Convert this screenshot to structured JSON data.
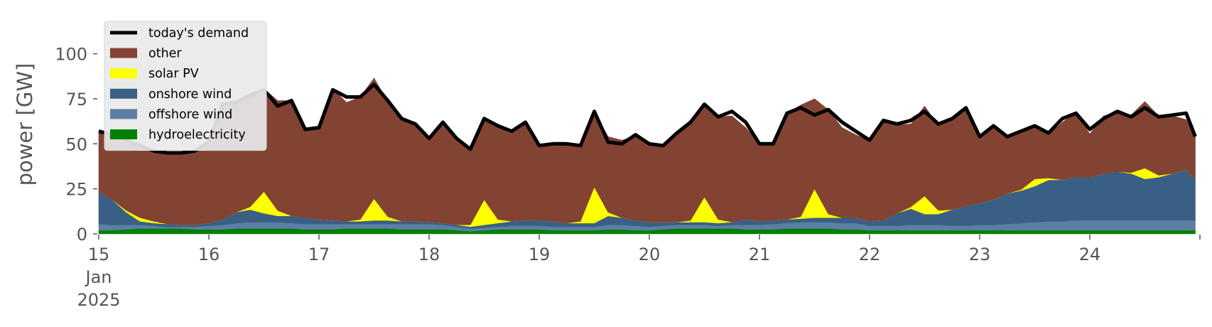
{
  "chart_data": {
    "type": "area",
    "ylabel": "power [GW]",
    "ylim": [
      0,
      118
    ],
    "yticks": [
      0,
      25,
      50,
      75,
      100
    ],
    "xlim": [
      "2025-01-15",
      "2025-01-25"
    ],
    "xtick_labels": [
      "15",
      "16",
      "17",
      "18",
      "19",
      "20",
      "21",
      "22",
      "23",
      "24"
    ],
    "xtick_month": "Jan",
    "xtick_year": "2025",
    "grid": false,
    "legend_position": "top-left",
    "x": [
      "2025-01-15 00:00",
      "2025-01-15 03:00",
      "2025-01-15 06:00",
      "2025-01-15 09:00",
      "2025-01-15 12:00",
      "2025-01-15 15:00",
      "2025-01-15 18:00",
      "2025-01-15 21:00",
      "2025-01-16 00:00",
      "2025-01-16 03:00",
      "2025-01-16 06:00",
      "2025-01-16 09:00",
      "2025-01-16 12:00",
      "2025-01-16 15:00",
      "2025-01-16 18:00",
      "2025-01-16 21:00",
      "2025-01-17 00:00",
      "2025-01-17 03:00",
      "2025-01-17 06:00",
      "2025-01-17 09:00",
      "2025-01-17 12:00",
      "2025-01-17 15:00",
      "2025-01-17 18:00",
      "2025-01-17 21:00",
      "2025-01-18 00:00",
      "2025-01-18 03:00",
      "2025-01-18 06:00",
      "2025-01-18 09:00",
      "2025-01-18 12:00",
      "2025-01-18 15:00",
      "2025-01-18 18:00",
      "2025-01-18 21:00",
      "2025-01-19 00:00",
      "2025-01-19 03:00",
      "2025-01-19 06:00",
      "2025-01-19 09:00",
      "2025-01-19 12:00",
      "2025-01-19 15:00",
      "2025-01-19 18:00",
      "2025-01-19 21:00",
      "2025-01-20 00:00",
      "2025-01-20 03:00",
      "2025-01-20 06:00",
      "2025-01-20 09:00",
      "2025-01-20 12:00",
      "2025-01-20 15:00",
      "2025-01-20 18:00",
      "2025-01-20 21:00",
      "2025-01-21 00:00",
      "2025-01-21 03:00",
      "2025-01-21 06:00",
      "2025-01-21 09:00",
      "2025-01-21 12:00",
      "2025-01-21 15:00",
      "2025-01-21 18:00",
      "2025-01-21 21:00",
      "2025-01-22 00:00",
      "2025-01-22 03:00",
      "2025-01-22 06:00",
      "2025-01-22 09:00",
      "2025-01-22 12:00",
      "2025-01-22 15:00",
      "2025-01-22 18:00",
      "2025-01-22 21:00",
      "2025-01-23 00:00",
      "2025-01-23 03:00",
      "2025-01-23 06:00",
      "2025-01-23 09:00",
      "2025-01-23 12:00",
      "2025-01-23 15:00",
      "2025-01-23 18:00",
      "2025-01-23 21:00",
      "2025-01-24 00:00",
      "2025-01-24 03:00",
      "2025-01-24 06:00",
      "2025-01-24 09:00",
      "2025-01-24 12:00",
      "2025-01-24 15:00",
      "2025-01-24 18:00",
      "2025-01-24 21:00",
      "2025-01-24 23:00"
    ],
    "series": [
      {
        "name": "hydroelectricity",
        "type": "stacked-area",
        "color": "#008000",
        "values": [
          2,
          2,
          2.5,
          3,
          3,
          3,
          3,
          2.5,
          2.5,
          2.5,
          3,
          3,
          3,
          3,
          3,
          2.5,
          2.5,
          2.5,
          3,
          3,
          3,
          3,
          2.5,
          2.5,
          2.5,
          2.5,
          2,
          1.5,
          2,
          2.5,
          2.5,
          2.5,
          2.5,
          2,
          2,
          2,
          2,
          2.5,
          2.5,
          2,
          2,
          2.5,
          3,
          3,
          3,
          3,
          3,
          2.5,
          2.5,
          2.5,
          3,
          3,
          3,
          3,
          2.5,
          2.5,
          2,
          2,
          2,
          2,
          2,
          2,
          2,
          2,
          2,
          2,
          2,
          2,
          2,
          2,
          2,
          2,
          2,
          2,
          2,
          2,
          2,
          2,
          2,
          2,
          2
        ]
      },
      {
        "name": "offshore wind",
        "type": "stacked-area",
        "color": "#5b7fa3",
        "values": [
          3.5,
          3,
          2.5,
          2,
          1.5,
          1,
          1,
          1.5,
          2,
          2.5,
          3,
          3.5,
          3.5,
          3.5,
          3,
          3,
          3,
          3,
          2.5,
          2.5,
          2.5,
          2.5,
          3,
          3,
          3,
          2.5,
          2,
          1.5,
          1.5,
          1.5,
          2,
          2,
          2,
          2,
          2,
          2,
          2,
          2.5,
          2.5,
          2.5,
          2,
          2,
          2,
          2,
          2,
          1.5,
          2,
          2.5,
          2.5,
          3,
          3,
          3.5,
          3.5,
          3.5,
          3.5,
          3.5,
          2.5,
          2.5,
          2.5,
          3,
          3,
          3,
          2.5,
          2.5,
          3,
          3,
          3.5,
          4,
          4.5,
          5,
          5,
          5.5,
          5.5,
          5.5,
          5.5,
          5.5,
          5.5,
          5.5,
          5.5,
          5.5,
          5.5
        ]
      },
      {
        "name": "onshore wind",
        "type": "stacked-area",
        "color": "#3a5f84",
        "values": [
          18,
          14,
          7,
          2,
          1.5,
          1.5,
          1,
          1,
          1.5,
          3,
          6,
          7,
          5,
          3.5,
          4,
          3.5,
          2.5,
          2,
          1.5,
          1.5,
          2,
          2,
          1.5,
          1.5,
          1,
          1,
          1,
          1,
          1.5,
          2,
          2.5,
          3,
          3,
          3,
          2,
          2,
          2,
          5,
          4,
          3,
          2.5,
          2,
          1.5,
          1.5,
          1.5,
          1.5,
          1.5,
          3,
          2,
          2,
          2,
          2,
          2.5,
          2.5,
          3,
          3,
          2.5,
          3,
          7,
          9,
          6,
          6,
          9,
          11,
          12,
          14,
          17,
          18,
          20,
          23,
          23,
          24,
          24,
          26,
          27,
          26,
          23,
          24,
          26,
          28,
          23
        ]
      },
      {
        "name": "solar PV",
        "type": "stacked-area",
        "color": "#ffff00",
        "values": [
          0,
          0,
          1,
          2,
          1,
          0,
          0,
          0,
          0,
          0,
          0,
          1.5,
          12,
          3,
          0,
          0,
          0,
          0,
          0,
          1,
          12,
          2,
          0,
          0,
          0,
          0,
          0,
          1,
          14,
          2,
          0,
          0,
          0,
          0,
          0,
          1,
          20,
          2,
          0,
          0,
          0,
          0,
          0,
          1,
          14,
          2,
          0,
          0,
          0,
          0,
          0,
          1,
          16,
          2,
          0,
          0,
          0,
          0,
          0,
          1,
          10,
          2,
          0,
          0,
          0,
          0,
          0,
          0.5,
          4,
          1,
          0,
          0,
          0,
          0,
          0,
          0.5,
          6,
          1,
          0,
          0,
          0
        ]
      },
      {
        "name": "other",
        "type": "stacked-area",
        "color": "#834333",
        "values": [
          33.5,
          36,
          40,
          40,
          40,
          40,
          40,
          40,
          45,
          65,
          61,
          63,
          57,
          61,
          64,
          49,
          51,
          73,
          66,
          68,
          67,
          64,
          56,
          55,
          47,
          56,
          48,
          43,
          46,
          52,
          50,
          55,
          42,
          43,
          44,
          43,
          42,
          42,
          43,
          47,
          44,
          42,
          48,
          54,
          51,
          57,
          59,
          51,
          43,
          42,
          59,
          62,
          50,
          58,
          50,
          46,
          45,
          55,
          49,
          46,
          50,
          47,
          51,
          54,
          37,
          41,
          32,
          32,
          29,
          24,
          32,
          36,
          24,
          32,
          33,
          32,
          37,
          33,
          32,
          28,
          23
        ]
      },
      {
        "name": "today's demand",
        "type": "line",
        "color": "#000000",
        "values": [
          57,
          55,
          52,
          49,
          46,
          45,
          45,
          46,
          51,
          72,
          73,
          77,
          80,
          71,
          74,
          58,
          59,
          80,
          76,
          76,
          83,
          74,
          64,
          61,
          53,
          62,
          53,
          47,
          64,
          60,
          57,
          62,
          49,
          50,
          50,
          49,
          68,
          51,
          50,
          55,
          50,
          49,
          56,
          62,
          72,
          65,
          68,
          62,
          50,
          50,
          67,
          70,
          66,
          69,
          62,
          57,
          52,
          63,
          61,
          63,
          68,
          61,
          64,
          70,
          54,
          60,
          54,
          57,
          60,
          56,
          64,
          67,
          58,
          64,
          68,
          65,
          70,
          65,
          66,
          67,
          54
        ]
      }
    ]
  }
}
